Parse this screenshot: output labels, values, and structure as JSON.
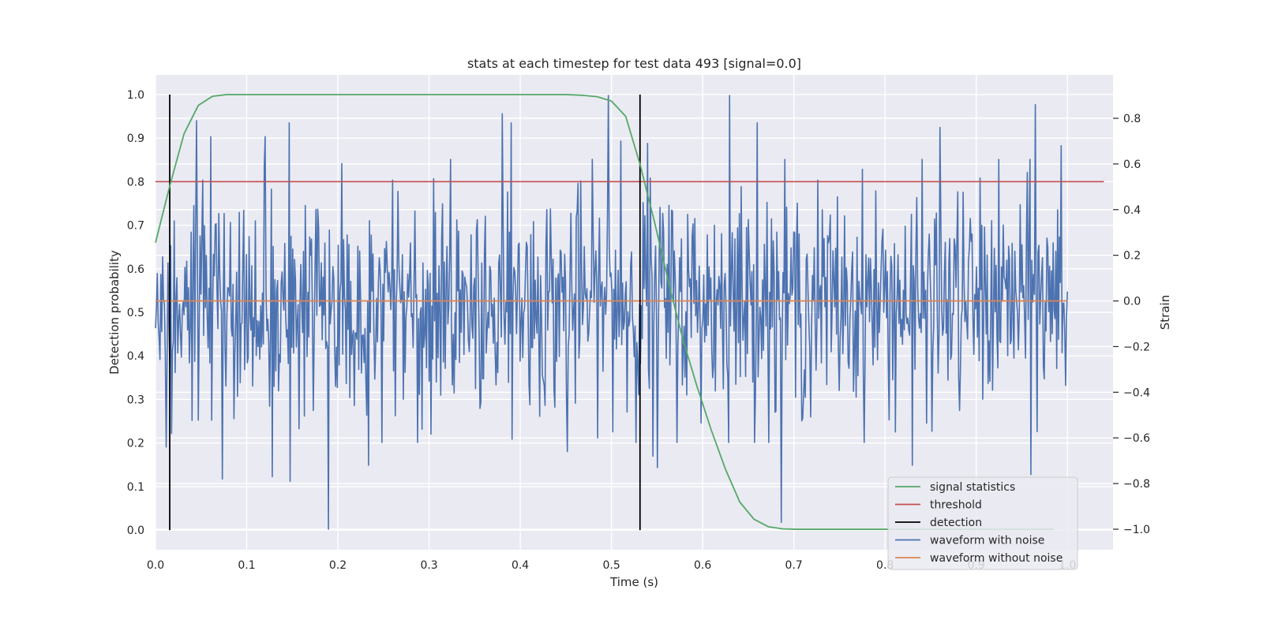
{
  "chart_data": {
    "type": "line",
    "title": "stats at each timestep for test data 493 [signal=0.0]",
    "xlabel": "Time (s)",
    "ylabel": "Detection probability",
    "y2label": "Strain",
    "xlim": [
      0.0,
      1.05
    ],
    "ylim": [
      -0.045,
      1.045
    ],
    "y2lim": [
      -1.09,
      0.99
    ],
    "x_ticks": [
      "0.0",
      "0.1",
      "0.2",
      "0.3",
      "0.4",
      "0.5",
      "0.6",
      "0.7",
      "0.8",
      "0.9",
      "1.0"
    ],
    "x_tick_values": [
      0.0,
      0.1,
      0.2,
      0.3,
      0.4,
      0.5,
      0.6,
      0.7,
      0.8,
      0.9,
      1.0
    ],
    "y_ticks": [
      "0.0",
      "0.1",
      "0.2",
      "0.3",
      "0.4",
      "0.5",
      "0.6",
      "0.7",
      "0.8",
      "0.9",
      "1.0"
    ],
    "y_tick_values": [
      0.0,
      0.1,
      0.2,
      0.3,
      0.4,
      0.5,
      0.6,
      0.7,
      0.8,
      0.9,
      1.0
    ],
    "y2_ticks": [
      "−1.0",
      "−0.8",
      "−0.6",
      "−0.4",
      "−0.2",
      "0.0",
      "0.2",
      "0.4",
      "0.6",
      "0.8"
    ],
    "y2_tick_values": [
      -1.0,
      -0.8,
      -0.6,
      -0.4,
      -0.2,
      0.0,
      0.2,
      0.4,
      0.6,
      0.8
    ],
    "grid": true,
    "legend_position": "lower-right",
    "legend": [
      {
        "label": "signal statistics",
        "color": "#55a868"
      },
      {
        "label": "threshold",
        "color": "#c44e52"
      },
      {
        "label": "detection",
        "color": "#000000"
      },
      {
        "label": "waveform with noise",
        "color": "#4c72b0"
      },
      {
        "label": "waveform without noise",
        "color": "#dd8452"
      }
    ],
    "signal_statistics": {
      "color": "#55a868",
      "x": [
        0.0,
        0.0156,
        0.0313,
        0.0469,
        0.0625,
        0.0781,
        0.0938,
        0.1094,
        0.125,
        0.2,
        0.3,
        0.4,
        0.45,
        0.47,
        0.4844,
        0.5,
        0.5156,
        0.5313,
        0.5469,
        0.5625,
        0.5781,
        0.5938,
        0.6094,
        0.625,
        0.6406,
        0.6563,
        0.6719,
        0.6875,
        0.7031,
        0.7188,
        0.75,
        0.8,
        0.9,
        0.985
      ],
      "y": [
        0.66,
        0.79,
        0.91,
        0.975,
        0.996,
        1.0,
        1.0,
        1.0,
        1.0,
        1.0,
        1.0,
        1.0,
        1.0,
        0.998,
        0.995,
        0.985,
        0.95,
        0.84,
        0.71,
        0.57,
        0.44,
        0.33,
        0.23,
        0.14,
        0.065,
        0.025,
        0.008,
        0.003,
        0.002,
        0.002,
        0.002,
        0.002,
        0.002,
        0.002
      ]
    },
    "threshold": {
      "value": 0.8,
      "color": "#c44e52",
      "x_range": [
        0.0,
        1.04
      ]
    },
    "detections": {
      "x": [
        0.0156,
        0.5313
      ],
      "y_range": [
        0.0,
        1.0
      ],
      "color": "#000000"
    },
    "waveform_without_noise": {
      "value": 0.0,
      "color": "#dd8452",
      "x_range": [
        0.0,
        1.0
      ]
    },
    "waveform_with_noise": {
      "color": "#4c72b0",
      "n_points": 1024,
      "x_range": [
        0.0,
        1.0
      ],
      "highlights": [
        {
          "x": 0.004,
          "y": -0.16
        },
        {
          "x": 0.012,
          "y": -0.64
        },
        {
          "x": 0.045,
          "y": 0.79
        },
        {
          "x": 0.061,
          "y": 0.72
        },
        {
          "x": 0.073,
          "y": -0.78
        },
        {
          "x": 0.12,
          "y": 0.72
        },
        {
          "x": 0.128,
          "y": -0.77
        },
        {
          "x": 0.147,
          "y": 0.78
        },
        {
          "x": 0.148,
          "y": -0.79
        },
        {
          "x": 0.19,
          "y": -1.0
        },
        {
          "x": 0.234,
          "y": -0.72
        },
        {
          "x": 0.38,
          "y": 0.82
        },
        {
          "x": 0.39,
          "y": 0.78
        },
        {
          "x": 0.452,
          "y": -0.66
        },
        {
          "x": 0.485,
          "y": -0.6
        },
        {
          "x": 0.497,
          "y": 0.9
        },
        {
          "x": 0.51,
          "y": 0.7
        },
        {
          "x": 0.54,
          "y": 0.69
        },
        {
          "x": 0.545,
          "y": -0.68
        },
        {
          "x": 0.55,
          "y": -0.73
        },
        {
          "x": 0.63,
          "y": 0.9
        },
        {
          "x": 0.66,
          "y": 0.78
        },
        {
          "x": 0.686,
          "y": -0.97
        },
        {
          "x": 0.83,
          "y": -0.72
        },
        {
          "x": 0.86,
          "y": 0.76
        },
        {
          "x": 0.965,
          "y": 0.86
        },
        {
          "x": 0.96,
          "y": -0.76
        },
        {
          "x": 0.993,
          "y": 0.68
        },
        {
          "x": 0.998,
          "y": -0.37
        }
      ]
    }
  }
}
